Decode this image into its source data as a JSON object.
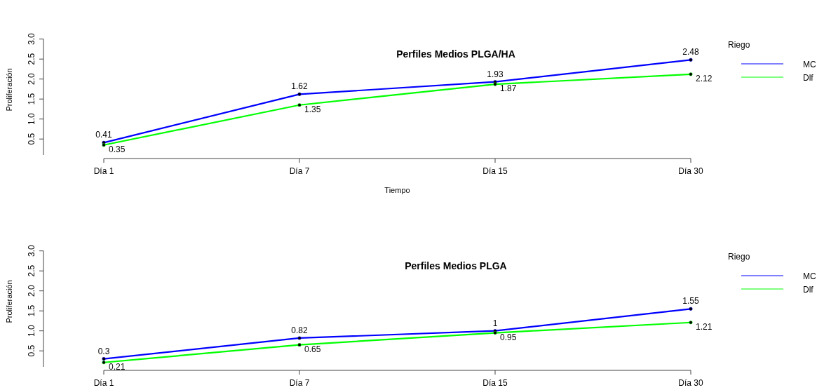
{
  "chart_data": [
    {
      "type": "line",
      "title": "Perfiles Medios PLGA/HA",
      "xlabel": "Tiempo",
      "ylabel": "Proliferación",
      "legend_title": "Riego",
      "legend": "right",
      "marker": "circle",
      "data_labels": true,
      "categories": [
        "Día 1",
        "Día 7",
        "Día 15",
        "Día 30"
      ],
      "ylim": [
        0.1,
        3.0
      ],
      "yticks": [
        0.5,
        {
          "value": 1,
          "label": "1.0"
        },
        1.5,
        {
          "value": 2,
          "label": "2.0"
        },
        2.5,
        {
          "value": 3,
          "label": "3.0"
        }
      ],
      "series": [
        {
          "name": "MC",
          "color": "#0000ff",
          "values": [
            0.41,
            1.62,
            1.93,
            2.48
          ]
        },
        {
          "name": "Dlf",
          "color": "#00ff00",
          "values": [
            0.35,
            1.35,
            1.87,
            2.12
          ]
        }
      ]
    },
    {
      "type": "line",
      "title": "Perfiles Medios PLGA",
      "ylabel": "Proliferación",
      "legend_title": "Riego",
      "legend": "right",
      "marker": "circle",
      "data_labels": true,
      "categories": [
        "Día 1",
        "Día 7",
        "Día 15",
        "Día 30"
      ],
      "ylim": [
        0.1,
        3.0
      ],
      "yticks": [
        0.5,
        {
          "value": 1,
          "label": "1.0"
        },
        1.5,
        {
          "value": 2,
          "label": "2.0"
        },
        2.5,
        {
          "value": 3,
          "label": "3.0"
        }
      ],
      "series": [
        {
          "name": "MC",
          "color": "#0000ff",
          "values": [
            0.3,
            0.82,
            1,
            1.55
          ]
        },
        {
          "name": "Dlf",
          "color": "#00ff00",
          "values": [
            0.21,
            0.65,
            0.95,
            1.21
          ]
        }
      ]
    }
  ]
}
